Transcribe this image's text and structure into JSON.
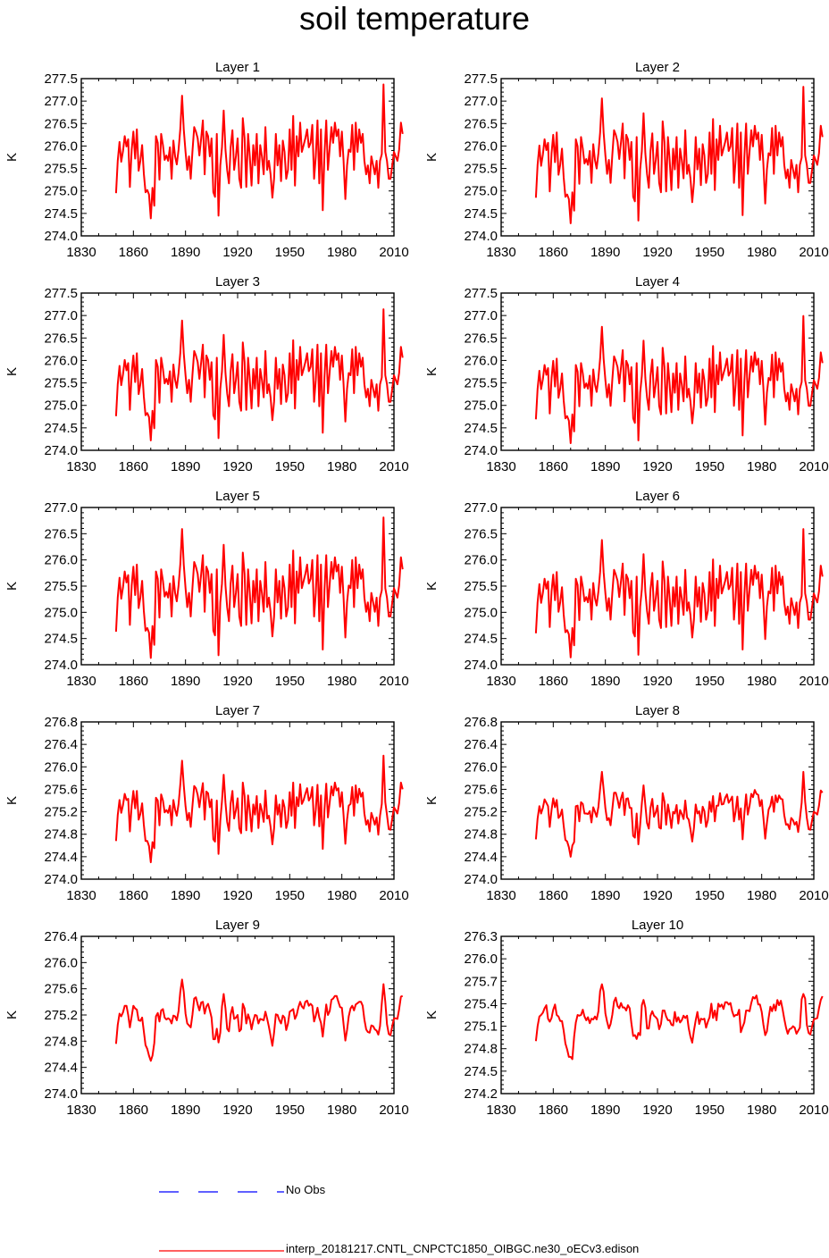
{
  "title": "soil temperature",
  "colors": {
    "model": "#ff0000",
    "obs": "#0000ff",
    "axis": "#000000"
  },
  "legend": {
    "obs_label": "No Obs",
    "model_label": "interp_20181217.CNTL_CNPCTC1850_OIBGC.ne30_oECv3.edison"
  },
  "chart_data": [
    {
      "type": "line",
      "title": "Layer 1",
      "ylabel": "K",
      "xlim": [
        1830,
        2010
      ],
      "xticks": [
        "1830",
        "1860",
        "1890",
        "1920",
        "1950",
        "1980",
        "2010"
      ],
      "ylim": [
        274.0,
        277.5
      ],
      "yticks": [
        "274.0",
        "274.5",
        "275.0",
        "275.5",
        "276.0",
        "276.5",
        "277.0",
        "277.5"
      ],
      "series": [
        {
          "name": "interp_20181217.CNTL_CNPCTC1850_OIBGC.ne30_oECv3.edison",
          "x_start": 1850,
          "values": []
        }
      ]
    },
    {
      "type": "line",
      "title": "Layer 2",
      "ylabel": "K",
      "xlim": [
        1830,
        2010
      ],
      "xticks": [
        "1830",
        "1860",
        "1890",
        "1920",
        "1950",
        "1980",
        "2010"
      ],
      "ylim": [
        274.0,
        277.5
      ],
      "yticks": [
        "274.0",
        "274.5",
        "275.0",
        "275.5",
        "276.0",
        "276.5",
        "277.0",
        "277.5"
      ],
      "series": [
        {
          "name": "interp_20181217.CNTL_CNPCTC1850_OIBGC.ne30_oECv3.edison",
          "x_start": 1850,
          "values": []
        }
      ]
    },
    {
      "type": "line",
      "title": "Layer 3",
      "ylabel": "K",
      "xlim": [
        1830,
        2010
      ],
      "xticks": [
        "1830",
        "1860",
        "1890",
        "1920",
        "1950",
        "1980",
        "2010"
      ],
      "ylim": [
        274.0,
        277.5
      ],
      "yticks": [
        "274.0",
        "274.5",
        "275.0",
        "275.5",
        "276.0",
        "276.5",
        "277.0",
        "277.5"
      ],
      "series": [
        {
          "name": "interp_20181217.CNTL_CNPCTC1850_OIBGC.ne30_oECv3.edison",
          "x_start": 1850,
          "values": []
        }
      ]
    },
    {
      "type": "line",
      "title": "Layer 4",
      "ylabel": "K",
      "xlim": [
        1830,
        2010
      ],
      "xticks": [
        "1830",
        "1860",
        "1890",
        "1920",
        "1950",
        "1980",
        "2010"
      ],
      "ylim": [
        274.0,
        277.5
      ],
      "yticks": [
        "274.0",
        "274.5",
        "275.0",
        "275.5",
        "276.0",
        "276.5",
        "277.0",
        "277.5"
      ],
      "series": [
        {
          "name": "interp_20181217.CNTL_CNPCTC1850_OIBGC.ne30_oECv3.edison",
          "x_start": 1850,
          "values": []
        }
      ]
    },
    {
      "type": "line",
      "title": "Layer 5",
      "ylabel": "K",
      "xlim": [
        1830,
        2010
      ],
      "xticks": [
        "1830",
        "1860",
        "1890",
        "1920",
        "1950",
        "1980",
        "2010"
      ],
      "ylim": [
        274.0,
        277.0
      ],
      "yticks": [
        "274.0",
        "274.5",
        "275.0",
        "275.5",
        "276.0",
        "276.5",
        "277.0"
      ],
      "series": [
        {
          "name": "interp_20181217.CNTL_CNPCTC1850_OIBGC.ne30_oECv3.edison",
          "x_start": 1850,
          "values": []
        }
      ]
    },
    {
      "type": "line",
      "title": "Layer 6",
      "ylabel": "K",
      "xlim": [
        1830,
        2010
      ],
      "xticks": [
        "1830",
        "1860",
        "1890",
        "1920",
        "1950",
        "1980",
        "2010"
      ],
      "ylim": [
        274.0,
        277.0
      ],
      "yticks": [
        "274.0",
        "274.5",
        "275.0",
        "275.5",
        "276.0",
        "276.5",
        "277.0"
      ],
      "series": [
        {
          "name": "interp_20181217.CNTL_CNPCTC1850_OIBGC.ne30_oECv3.edison",
          "x_start": 1850,
          "values": []
        }
      ]
    },
    {
      "type": "line",
      "title": "Layer 7",
      "ylabel": "K",
      "xlim": [
        1830,
        2010
      ],
      "xticks": [
        "1830",
        "1860",
        "1890",
        "1920",
        "1950",
        "1980",
        "2010"
      ],
      "ylim": [
        274.0,
        276.8
      ],
      "yticks": [
        "274.0",
        "274.4",
        "274.8",
        "275.2",
        "275.6",
        "276.0",
        "276.4",
        "276.8"
      ],
      "series": [
        {
          "name": "interp_20181217.CNTL_CNPCTC1850_OIBGC.ne30_oECv3.edison",
          "x_start": 1850,
          "values": []
        }
      ]
    },
    {
      "type": "line",
      "title": "Layer 8",
      "ylabel": "K",
      "xlim": [
        1830,
        2010
      ],
      "xticks": [
        "1830",
        "1860",
        "1890",
        "1920",
        "1950",
        "1980",
        "2010"
      ],
      "ylim": [
        274.0,
        276.8
      ],
      "yticks": [
        "274.0",
        "274.4",
        "274.8",
        "275.2",
        "275.6",
        "276.0",
        "276.4",
        "276.8"
      ],
      "series": [
        {
          "name": "interp_20181217.CNTL_CNPCTC1850_OIBGC.ne30_oECv3.edison",
          "x_start": 1850,
          "values": []
        }
      ]
    },
    {
      "type": "line",
      "title": "Layer 9",
      "ylabel": "K",
      "xlim": [
        1830,
        2010
      ],
      "xticks": [
        "1830",
        "1860",
        "1890",
        "1920",
        "1950",
        "1980",
        "2010"
      ],
      "ylim": [
        274.0,
        276.4
      ],
      "yticks": [
        "274.0",
        "274.4",
        "274.8",
        "275.2",
        "275.6",
        "276.0",
        "276.4"
      ],
      "series": [
        {
          "name": "interp_20181217.CNTL_CNPCTC1850_OIBGC.ne30_oECv3.edison",
          "x_start": 1850,
          "values": []
        }
      ]
    },
    {
      "type": "line",
      "title": "Layer 10",
      "ylabel": "K",
      "xlim": [
        1830,
        2010
      ],
      "xticks": [
        "1830",
        "1860",
        "1890",
        "1920",
        "1950",
        "1980",
        "2010"
      ],
      "ylim": [
        274.2,
        276.3
      ],
      "yticks": [
        "274.2",
        "274.5",
        "274.8",
        "275.1",
        "275.4",
        "275.7",
        "276.0",
        "276.3"
      ],
      "series": [
        {
          "name": "interp_20181217.CNTL_CNPCTC1850_OIBGC.ne30_oECv3.edison",
          "x_start": 1850,
          "values": []
        }
      ]
    }
  ]
}
